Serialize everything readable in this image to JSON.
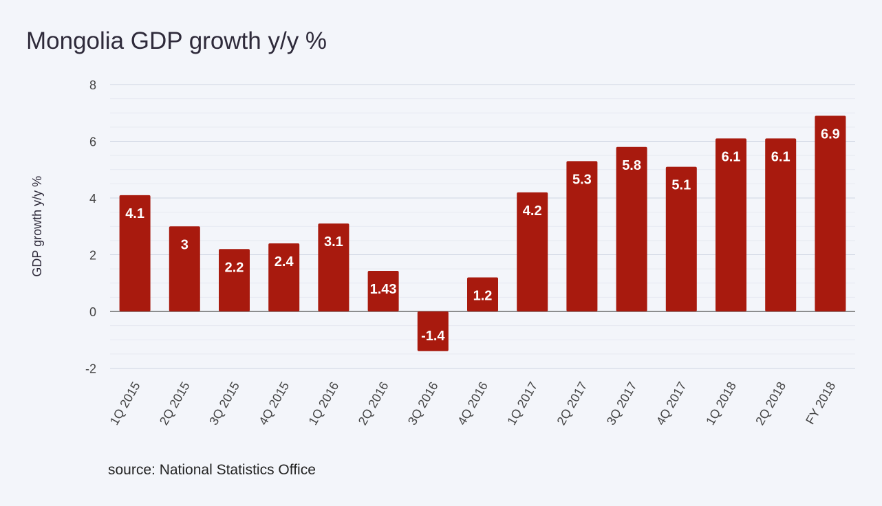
{
  "chart_data": {
    "type": "bar",
    "title": "Mongolia GDP growth y/y %",
    "ylabel": "GDP growth y/y %",
    "xlabel": "",
    "categories": [
      "1Q 2015",
      "2Q 2015",
      "3Q 2015",
      "4Q 2015",
      "1Q 2016",
      "2Q 2016",
      "3Q 2016",
      "4Q 2016",
      "1Q 2017",
      "2Q 2017",
      "3Q 2017",
      "4Q 2017",
      "1Q 2018",
      "2Q 2018",
      "FY 2018"
    ],
    "values": [
      4.1,
      3,
      2.2,
      2.4,
      3.1,
      1.43,
      -1.4,
      1.2,
      4.2,
      5.3,
      5.8,
      5.1,
      6.1,
      6.1,
      6.9
    ],
    "data_labels": [
      "4.1",
      "3",
      "2.2",
      "2.4",
      "3.1",
      "1.43",
      "-1.4",
      "1.2",
      "4.2",
      "5.3",
      "5.8",
      "5.1",
      "6.1",
      "6.1",
      "6.9"
    ],
    "yticks": [
      "8",
      "6",
      "4",
      "2",
      "0",
      "-2"
    ],
    "ylim": [
      -2,
      8
    ],
    "grid": true,
    "bar_color": "#a81a0e",
    "label_color": "#ffffff"
  },
  "source": "source: National Statistics Office"
}
